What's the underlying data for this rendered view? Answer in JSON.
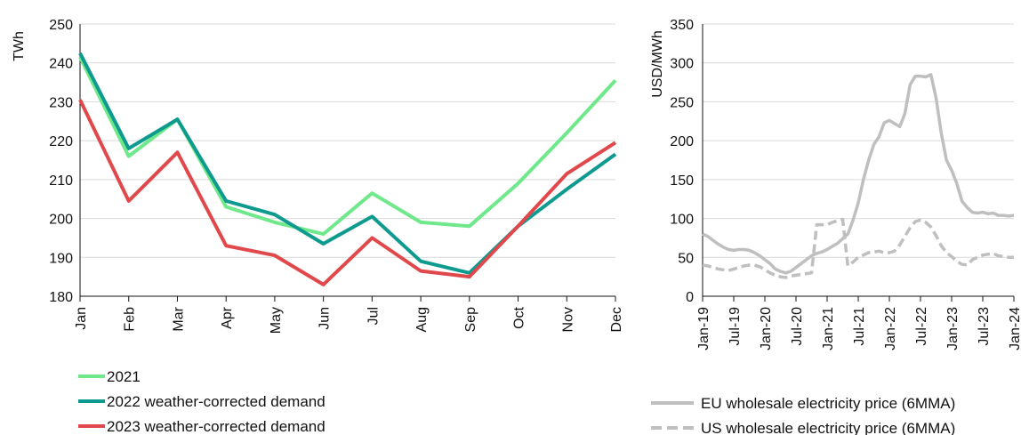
{
  "chart_data": [
    {
      "type": "line",
      "ylabel": "TWh",
      "ylim": [
        180,
        250
      ],
      "yticks": [
        180,
        190,
        200,
        210,
        220,
        230,
        240,
        250
      ],
      "grid": true,
      "legend_position": "bottom-left",
      "categories": [
        "Jan",
        "Feb",
        "Mar",
        "Apr",
        "May",
        "Jun",
        "Jul",
        "Aug",
        "Sep",
        "Oct",
        "Nov",
        "Dec"
      ],
      "series": [
        {
          "name": "2021",
          "color": "#6ee88a",
          "values": [
            241.5,
            216,
            225.5,
            203,
            199,
            196,
            206.5,
            199,
            198,
            209,
            222,
            235.5
          ]
        },
        {
          "name": "2022 weather-corrected demand",
          "color": "#0e9a8e",
          "values": [
            242.5,
            218,
            225.5,
            204.5,
            201,
            193.5,
            200.5,
            189,
            186,
            198,
            207.5,
            216.5
          ]
        },
        {
          "name": "2023 weather-corrected demand",
          "color": "#e0484b",
          "values": [
            230.5,
            204.5,
            217,
            193,
            190.5,
            183,
            195,
            186.5,
            185,
            198,
            211.5,
            219.5
          ]
        }
      ]
    },
    {
      "type": "line",
      "ylabel": "USD/MWh",
      "ylim": [
        0,
        350
      ],
      "yticks": [
        0,
        50,
        100,
        150,
        200,
        250,
        300,
        350
      ],
      "grid": true,
      "legend_position": "bottom",
      "x_tick_labels": [
        "Jan-19",
        "Jul-19",
        "Jan-20",
        "Jul-20",
        "Jan-21",
        "Jul-21",
        "Jan-22",
        "Jul-22",
        "Jan-23",
        "Jul-23",
        "Jan-24"
      ],
      "x_start": "Jan-19",
      "x_end": "Jan-24",
      "series": [
        {
          "name": "EU wholesale electricity price (6MMA)",
          "color": "#bfbfbf",
          "style": "solid",
          "x": [
            0,
            1,
            2,
            3,
            4,
            5,
            6,
            7,
            8,
            9,
            10,
            11,
            12,
            13,
            14,
            15,
            16,
            17,
            18,
            19,
            20,
            21,
            22,
            23,
            24,
            25,
            26,
            27,
            28,
            29,
            30,
            31,
            32,
            33,
            34,
            35,
            36,
            37,
            38,
            39,
            40,
            41,
            42,
            43,
            44,
            45,
            46,
            47,
            48,
            49,
            50,
            51,
            52,
            53,
            54,
            55,
            56,
            57,
            58,
            59,
            60
          ],
          "values": [
            80,
            77,
            72,
            67,
            63,
            60,
            59,
            60,
            60,
            59,
            56,
            52,
            47,
            42,
            35,
            32,
            30,
            32,
            37,
            42,
            47,
            52,
            55,
            57,
            60,
            64,
            68,
            74,
            80,
            98,
            120,
            150,
            175,
            195,
            205,
            223,
            226,
            222,
            218,
            235,
            272,
            283,
            283,
            282,
            285,
            255,
            210,
            175,
            162,
            145,
            122,
            114,
            108,
            107,
            108,
            106,
            107,
            104,
            104,
            103,
            104
          ],
          "x_dates": "Jan-19 .. Jan-24 monthly"
        },
        {
          "name": "US wholesale electricity price (6MMA)",
          "color": "#bfbfbf",
          "style": "dashed",
          "x": [
            0,
            1,
            2,
            3,
            4,
            5,
            6,
            7,
            8,
            9,
            10,
            11,
            12,
            13,
            14,
            15,
            16,
            17,
            18,
            19,
            20,
            21,
            22,
            23,
            24,
            25,
            26,
            27,
            28,
            29,
            30,
            31,
            32,
            33,
            34,
            35,
            36,
            37,
            38,
            39,
            40,
            41,
            42,
            43,
            44,
            45,
            46,
            47,
            48,
            49,
            50,
            51,
            52,
            53,
            54,
            55,
            56,
            57,
            58,
            59,
            60
          ],
          "values": [
            40,
            39,
            37,
            35,
            34,
            33,
            35,
            37,
            39,
            40,
            40,
            38,
            34,
            30,
            27,
            25,
            24,
            26,
            27,
            28,
            29,
            30,
            92,
            92,
            92,
            95,
            97,
            99,
            39,
            44,
            50,
            53,
            56,
            57,
            58,
            56,
            56,
            58,
            66,
            77,
            88,
            96,
            98,
            95,
            89,
            78,
            65,
            56,
            51,
            45,
            41,
            40,
            47,
            50,
            53,
            54,
            55,
            52,
            51,
            50,
            50
          ],
          "x_dates": "Jan-19 .. Jan-24 monthly"
        }
      ]
    }
  ]
}
